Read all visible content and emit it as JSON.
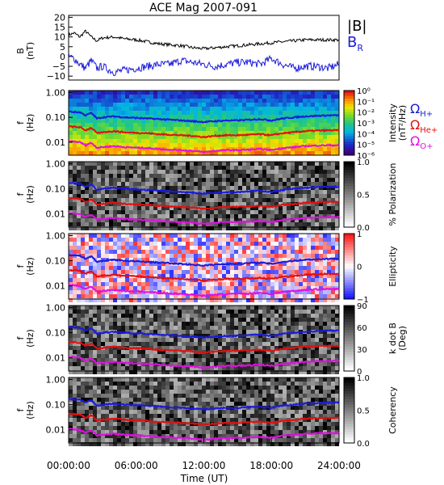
{
  "chart_data": {
    "type": "line",
    "title": "ACE Mag 2007-091",
    "xlabel": "Time (UT)",
    "x_ticks": [
      "00:00:00",
      "06:00:00",
      "12:00:00",
      "18:00:00",
      "24:00:00"
    ],
    "xlim": [
      0,
      24
    ],
    "colors": {
      "b_total": "#000000",
      "b_r": "#1a1adb",
      "omega_h": "#1a1adb",
      "omega_he": "#e01010",
      "omega_o": "#e010e0"
    },
    "top_panel": {
      "ylabel": "B",
      "yunit": "(nT)",
      "yticks": [
        "20",
        "15",
        "10",
        "5",
        "0",
        "−5",
        "−10"
      ],
      "ylim": [
        -12,
        21
      ],
      "legend_b": "|B|",
      "legend_br": "B",
      "legend_br_sub": "R",
      "series": [
        {
          "name": "|B|",
          "t": [
            0,
            0.5,
            1,
            1.5,
            2,
            2.5,
            3,
            4,
            5,
            6,
            7,
            8,
            9,
            10,
            11,
            12,
            13,
            14,
            15,
            16,
            17,
            18,
            19,
            20,
            21,
            22,
            23,
            24
          ],
          "values": [
            11,
            12,
            10,
            13,
            10,
            8,
            9.5,
            10,
            9,
            8.5,
            7.5,
            6.5,
            6,
            5.5,
            4.5,
            4,
            4.5,
            5,
            5.5,
            6,
            6.5,
            7,
            7.5,
            8,
            8.5,
            8.5,
            8.5,
            8.5
          ]
        },
        {
          "name": "B",
          "t": [
            0,
            0.5,
            1,
            1.5,
            2,
            2.5,
            3,
            4,
            5,
            6,
            7,
            8,
            9,
            10,
            11,
            12,
            13,
            14,
            15,
            16,
            17,
            18,
            19,
            20,
            21,
            22,
            23,
            24
          ],
          "values": [
            0,
            -1,
            -4,
            -6,
            -2,
            -6,
            -5,
            -8,
            -7,
            -6,
            -5,
            -4,
            -4,
            -2,
            -3,
            -4,
            -5,
            -4,
            -3,
            -3,
            -4,
            -1,
            -4,
            -6,
            -5,
            -5,
            -6,
            -4
          ]
        }
      ]
    },
    "panels": [
      {
        "ylabel": "f",
        "yunit": "(Hz)",
        "cbar_ticks": [
          "10⁰",
          "10⁻¹",
          "10⁻²",
          "10⁻³",
          "10⁻⁴",
          "10⁻⁵",
          "10⁻⁶"
        ],
        "cbar_label": "Intensity",
        "cbar_unit": "(nT²/Hz)",
        "scale": "rainbow"
      },
      {
        "ylabel": "f",
        "yunit": "(Hz)",
        "cbar_ticks": [
          "1.0",
          "0.5",
          "0.0"
        ],
        "cbar_label": "% Polarization",
        "scale": "gray"
      },
      {
        "ylabel": "f",
        "yunit": "(Hz)",
        "cbar_ticks": [
          "1",
          "0",
          "−1"
        ],
        "cbar_label": "Ellipticity",
        "scale": "redblue"
      },
      {
        "ylabel": "f",
        "yunit": "(Hz)",
        "cbar_ticks": [
          "90",
          "60",
          "30",
          "0"
        ],
        "cbar_label": "k dot B",
        "cbar_unit": "(Deg)",
        "scale": "gray"
      },
      {
        "ylabel": "f",
        "yunit": "(Hz)",
        "cbar_ticks": [
          "1.0",
          "0.5",
          "0.0"
        ],
        "cbar_label": "Coherency",
        "scale": "gray"
      }
    ],
    "freq_ticks": [
      "1.00",
      "0.10",
      "0.01"
    ],
    "freq_ylim": [
      0.003,
      1.2
    ],
    "gyro_legend": {
      "h": "Ω",
      "h_sub": "H+",
      "he": "Ω",
      "he_sub": "He+",
      "o": "Ω",
      "o_sub": "O+"
    },
    "gyrofrequencies": [
      {
        "name": "Ω H+",
        "t": [
          0,
          1,
          1.5,
          2,
          2.5,
          3,
          4,
          5,
          6,
          7,
          8,
          9,
          10,
          11,
          12,
          13,
          14,
          15,
          16,
          17,
          18,
          19,
          20,
          21,
          22,
          23,
          24
        ],
        "values": [
          0.17,
          0.16,
          0.12,
          0.15,
          0.09,
          0.1,
          0.11,
          0.1,
          0.095,
          0.09,
          0.085,
          0.08,
          0.075,
          0.07,
          0.065,
          0.07,
          0.075,
          0.075,
          0.08,
          0.085,
          0.075,
          0.09,
          0.1,
          0.11,
          0.115,
          0.12,
          0.12
        ]
      },
      {
        "name": "Ω He+",
        "t": [
          0,
          1,
          1.5,
          2,
          2.5,
          3,
          4,
          5,
          6,
          7,
          8,
          9,
          10,
          11,
          12,
          13,
          14,
          15,
          16,
          17,
          18,
          19,
          20,
          21,
          22,
          23,
          24
        ],
        "values": [
          0.043,
          0.04,
          0.03,
          0.038,
          0.023,
          0.025,
          0.028,
          0.025,
          0.024,
          0.023,
          0.021,
          0.02,
          0.019,
          0.018,
          0.016,
          0.018,
          0.019,
          0.019,
          0.02,
          0.021,
          0.019,
          0.023,
          0.025,
          0.028,
          0.029,
          0.03,
          0.03
        ]
      },
      {
        "name": "Ω O+",
        "t": [
          0,
          1,
          1.5,
          2,
          2.5,
          3,
          4,
          5,
          6,
          7,
          8,
          9,
          10,
          11,
          12,
          13,
          14,
          15,
          16,
          17,
          18,
          19,
          20,
          21,
          22,
          23,
          24
        ],
        "values": [
          0.011,
          0.01,
          0.0075,
          0.0095,
          0.006,
          0.0063,
          0.007,
          0.0063,
          0.006,
          0.0058,
          0.0053,
          0.005,
          0.0048,
          0.0045,
          0.004,
          0.0045,
          0.0048,
          0.0048,
          0.005,
          0.0053,
          0.0048,
          0.0058,
          0.0063,
          0.007,
          0.0073,
          0.0075,
          0.0075
        ]
      }
    ]
  }
}
